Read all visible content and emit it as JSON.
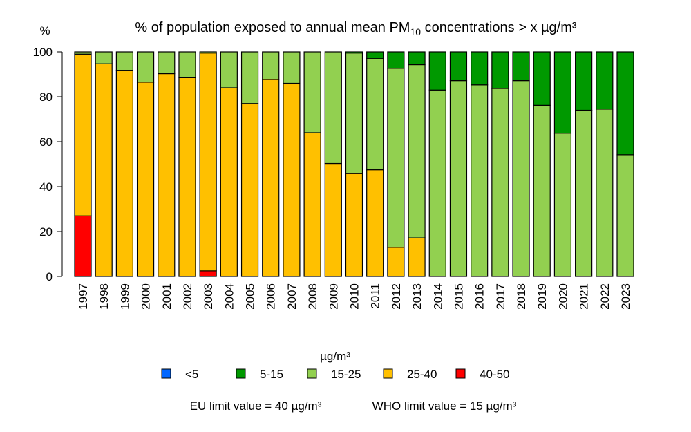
{
  "chart_data": {
    "type": "bar",
    "stacked": true,
    "title_main": "% of population exposed to annual mean PM",
    "title_sub": "10",
    "title_end": " concentrations > x µg/m³",
    "ylabel": "%",
    "ylim": [
      0,
      100
    ],
    "yticks": [
      0,
      20,
      40,
      60,
      80,
      100
    ],
    "grid": false,
    "categories": [
      "1997",
      "1998",
      "1999",
      "2000",
      "2001",
      "2002",
      "2003",
      "2004",
      "2005",
      "2006",
      "2007",
      "2008",
      "2009",
      "2010",
      "2011",
      "2012",
      "2013",
      "2014",
      "2015",
      "2016",
      "2017",
      "2018",
      "2019",
      "2020",
      "2021",
      "2022",
      "2023"
    ],
    "series": [
      {
        "name": "40-50",
        "color": "#FF0000",
        "values": [
          27,
          0,
          0,
          0,
          0,
          0,
          2.5,
          0,
          0,
          0,
          0,
          0,
          0,
          0,
          0,
          0,
          0,
          0,
          0,
          0,
          0,
          0,
          0,
          0,
          0,
          0,
          0
        ]
      },
      {
        "name": "25-40",
        "color": "#FFC000",
        "values": [
          72,
          94.7,
          91.8,
          86.5,
          90.3,
          88.5,
          97,
          84,
          77,
          87.7,
          86,
          64,
          50.3,
          45.8,
          47.5,
          13,
          17.2,
          0,
          0,
          0,
          0,
          0,
          0,
          0,
          0,
          0,
          0
        ]
      },
      {
        "name": "15-25",
        "color": "#92D050",
        "values": [
          1,
          5.3,
          8.2,
          13.5,
          9.7,
          11.5,
          0.5,
          16,
          23,
          12.3,
          14,
          36,
          49.7,
          53.7,
          49.5,
          79.7,
          77.1,
          83,
          87.2,
          85.3,
          83.7,
          87.2,
          76.2,
          63.8,
          74,
          74.5,
          54.2
        ]
      },
      {
        "name": "5-15",
        "color": "#009900",
        "values": [
          0,
          0,
          0,
          0,
          0,
          0,
          0,
          0,
          0,
          0,
          0,
          0,
          0,
          0.5,
          3,
          7.3,
          5.7,
          17,
          12.8,
          14.7,
          16.3,
          12.8,
          23.8,
          36.2,
          26,
          25.5,
          45.8
        ]
      },
      {
        "name": "<5",
        "color": "#0066FF",
        "values": [
          0,
          0,
          0,
          0,
          0,
          0,
          0,
          0,
          0,
          0,
          0,
          0,
          0,
          0,
          0,
          0,
          0,
          0,
          0,
          0,
          0,
          0,
          0,
          0,
          0,
          0,
          0
        ]
      }
    ],
    "legend_title": "µg/m³",
    "legend_order": [
      "<5",
      "5-15",
      "15-25",
      "25-40",
      "40-50"
    ],
    "legend_placement": "bottom",
    "footnote_eu": "EU limit value = 40 µg/m³",
    "footnote_who": "WHO limit value = 15 µg/m³"
  }
}
